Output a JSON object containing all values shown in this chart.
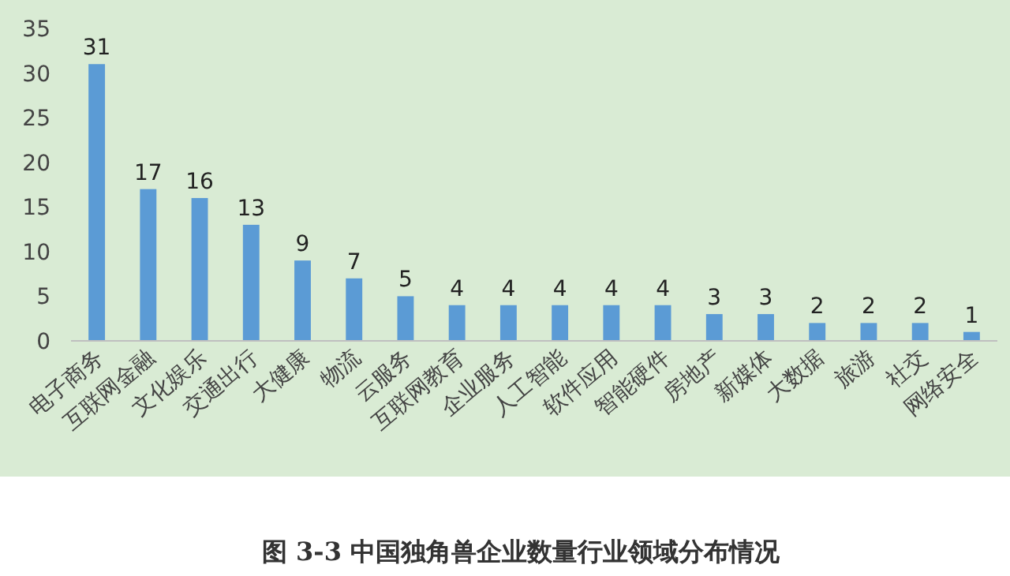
{
  "chart_data": {
    "type": "bar",
    "title": "图 3-3 中国独角兽企业数量行业领域分布情况",
    "categories": [
      "电子商务",
      "互联网金融",
      "文化娱乐",
      "交通出行",
      "大健康",
      "物流",
      "云服务",
      "互联网教育",
      "企业服务",
      "人工智能",
      "软件应用",
      "智能硬件",
      "房地产",
      "新媒体",
      "大数据",
      "旅游",
      "社交",
      "网络安全"
    ],
    "values": [
      31,
      17,
      16,
      13,
      9,
      7,
      5,
      4,
      4,
      4,
      4,
      4,
      3,
      3,
      2,
      2,
      2,
      1
    ],
    "color": "#5b9bd5",
    "ylim": [
      0,
      35
    ],
    "yticks": [
      0,
      5,
      10,
      15,
      20,
      25,
      30,
      35
    ],
    "data_labels": true
  }
}
